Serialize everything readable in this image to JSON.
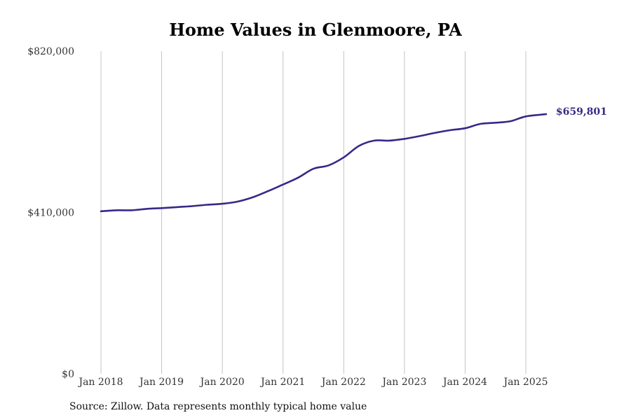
{
  "chart_data": {
    "type": "line",
    "title": "Home Values in Glenmoore, PA",
    "source": "Source: Zillow. Data represents monthly typical home value",
    "xlabel": "",
    "ylabel": "",
    "x_ticks": [
      "Jan 2018",
      "Jan 2019",
      "Jan 2020",
      "Jan 2021",
      "Jan 2022",
      "Jan 2023",
      "Jan 2024",
      "Jan 2025"
    ],
    "y_ticks": [
      "$0",
      "$410,000",
      "$820,000"
    ],
    "y_tick_values": [
      0,
      410000,
      820000
    ],
    "ylim": [
      0,
      820000
    ],
    "xlim": [
      "2017-12",
      "2025-08"
    ],
    "grid": "vertical lines at each January",
    "line_color": "#352a87",
    "end_label": "$659,801",
    "series": [
      {
        "values": [
          [
            "2018-01",
            413000
          ],
          [
            "2018-04",
            415500
          ],
          [
            "2018-07",
            415500
          ],
          [
            "2018-10",
            419000
          ],
          [
            "2019-01",
            421000
          ],
          [
            "2019-04",
            423500
          ],
          [
            "2019-07",
            426000
          ],
          [
            "2019-10",
            429500
          ],
          [
            "2020-01",
            432000
          ],
          [
            "2020-04",
            437500
          ],
          [
            "2020-07",
            448500
          ],
          [
            "2020-10",
            464000
          ],
          [
            "2021-01",
            481000
          ],
          [
            "2021-04",
            498500
          ],
          [
            "2021-07",
            521000
          ],
          [
            "2021-10",
            529500
          ],
          [
            "2022-01",
            550000
          ],
          [
            "2022-04",
            579000
          ],
          [
            "2022-07",
            592500
          ],
          [
            "2022-10",
            592500
          ],
          [
            "2023-01",
            597000
          ],
          [
            "2023-04",
            604000
          ],
          [
            "2023-07",
            612000
          ],
          [
            "2023-10",
            619000
          ],
          [
            "2024-01",
            624000
          ],
          [
            "2024-04",
            635000
          ],
          [
            "2024-07",
            638000
          ],
          [
            "2024-10",
            642000
          ],
          [
            "2025-01",
            654000
          ],
          [
            "2025-05",
            659801
          ]
        ]
      }
    ]
  }
}
